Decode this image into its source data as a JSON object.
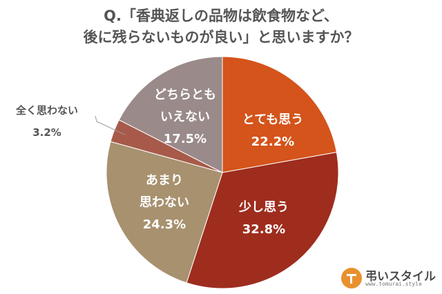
{
  "title": {
    "line1": "Q.「香典返しの品物は飲食物など、",
    "line2": "後に残らないものが良い」と思いますか？"
  },
  "chart_data": {
    "type": "pie",
    "title": "Q.「香典返しの品物は飲食物など、後に残らないものが良い」と思いますか？",
    "start": "12 o'clock",
    "direction": "clockwise",
    "slices": [
      {
        "label_lines": [
          "とても思う"
        ],
        "value": 22.2,
        "value_label": "22.2%",
        "color": "#d4541b",
        "label_color": "#ffffff",
        "label_position": "inside"
      },
      {
        "label_lines": [
          "少し思う"
        ],
        "value": 32.8,
        "value_label": "32.8%",
        "color": "#9e2d1e",
        "label_color": "#ffffff",
        "label_position": "inside"
      },
      {
        "label_lines": [
          "あまり",
          "思わない"
        ],
        "value": 24.3,
        "value_label": "24.3%",
        "color": "#a8916f",
        "label_color": "#ffffff",
        "label_position": "inside"
      },
      {
        "label_lines": [
          "全く思わない"
        ],
        "value": 3.2,
        "value_label": "3.2%",
        "color": "#a85a4a",
        "label_color": "#555555",
        "label_position": "outside"
      },
      {
        "label_lines": [
          "どちらとも",
          "いえない"
        ],
        "value": 17.5,
        "value_label": "17.5%",
        "color": "#9a8a8a",
        "label_color": "#ffffff",
        "label_position": "inside"
      }
    ]
  },
  "logo": {
    "name": "弔いスタイル",
    "url": "www.tomurai.style",
    "color": "#e8912e"
  }
}
